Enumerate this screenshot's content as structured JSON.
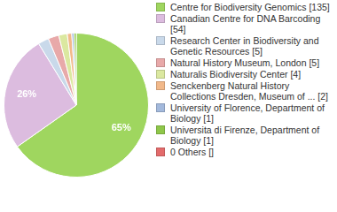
{
  "chart_data": {
    "type": "pie",
    "categories": [
      "Centre for Biodiversity Genomics [135]",
      "Canadian Centre for DNA Barcoding [54]",
      "Research Center in Biodiversity and Genetic Resources [5]",
      "Natural History Museum, London [5]",
      "Naturalis Biodiversity Center [4]",
      "Senckenberg Natural History Collections Dresden, Museum of ... [2]",
      "University of Florence, Department of Biology [1]",
      "Universita di Firenze, Department of Biology [1]",
      "0 Others []"
    ],
    "values": [
      65.2,
      26.1,
      2.4,
      2.4,
      1.9,
      1.0,
      0.5,
      0.5,
      0
    ],
    "value_labels": [
      "65%",
      "26%",
      null,
      null,
      null,
      null,
      null,
      null,
      null
    ],
    "colors": [
      "#9fd65f",
      "#dcbcdf",
      "#c9d9ea",
      "#e8a9a9",
      "#dbe8a0",
      "#f2b98a",
      "#a3b9dc",
      "#8fc74a",
      "#e36b6b"
    ],
    "legend": "right",
    "data_labels": true
  }
}
